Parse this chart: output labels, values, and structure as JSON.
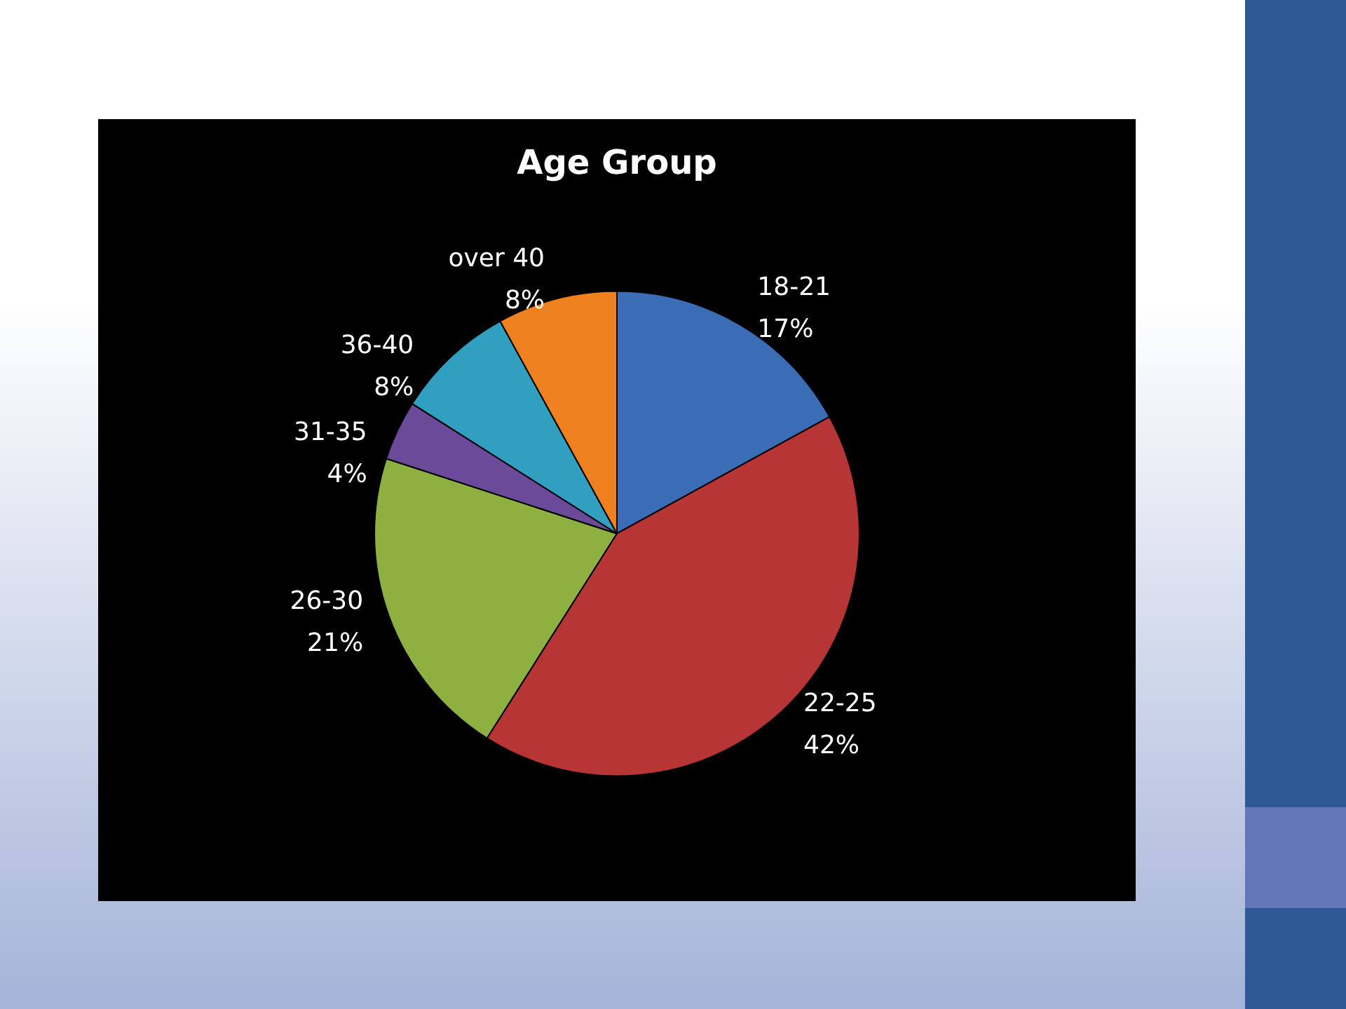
{
  "chart_data": {
    "type": "pie",
    "title": "Age Group",
    "categories": [
      "18-21",
      "22-25",
      "26-30",
      "31-35",
      "36-40",
      "over 40"
    ],
    "values": [
      17,
      42,
      21,
      4,
      8,
      8
    ],
    "value_labels": [
      "17%",
      "42%",
      "21%",
      "4%",
      "8%",
      "8%"
    ],
    "colors": [
      "#3a6db5",
      "#b83535",
      "#8db040",
      "#6b4a9a",
      "#31a0c0",
      "#ef8020"
    ]
  }
}
